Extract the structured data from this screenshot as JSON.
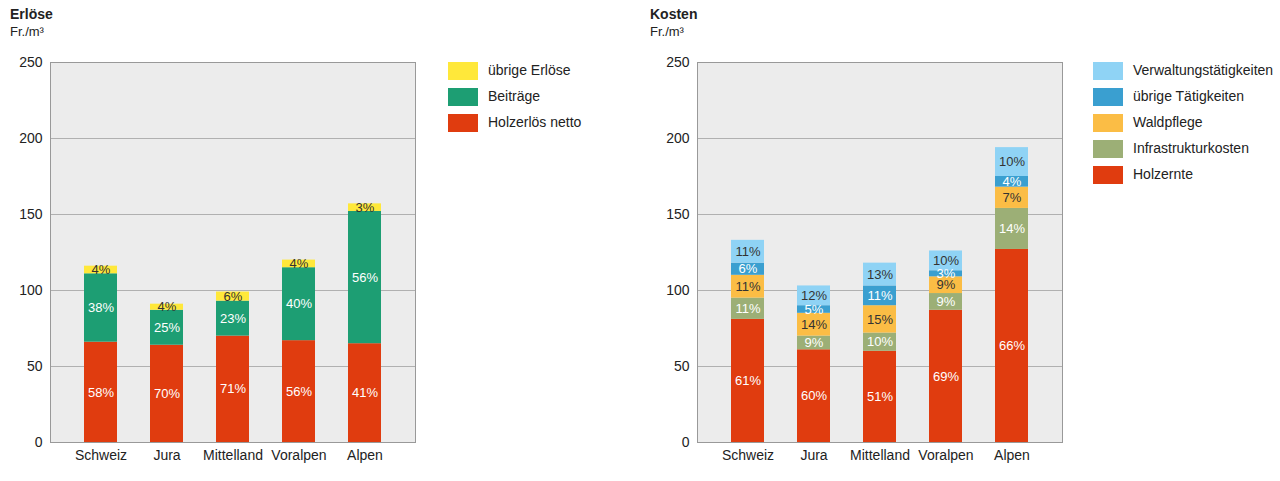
{
  "chart_data": [
    {
      "type": "bar",
      "stacked": true,
      "title": "Erlöse",
      "ylabel": "Fr./m³",
      "categories": [
        "Schweiz",
        "Jura",
        "Mittelland",
        "Voralpen",
        "Alpen"
      ],
      "ylim": [
        0,
        250
      ],
      "yticks": [
        0,
        50,
        100,
        150,
        200,
        250
      ],
      "grid": true,
      "legend": "right",
      "series": [
        {
          "name": "Holzerlös netto",
          "color": "#e03c0f",
          "values": [
            66,
            64,
            70,
            67,
            65
          ],
          "shares": [
            {
              "value": 58,
              "label": "58%"
            },
            {
              "value": 70,
              "label": "70%"
            },
            {
              "value": 71,
              "label": "71%"
            },
            {
              "value": 56,
              "label": "56%"
            },
            {
              "value": 41,
              "label": "41%"
            }
          ]
        },
        {
          "name": "Beiträge",
          "color": "#1d9e73",
          "values": [
            45,
            23,
            23,
            48,
            87
          ],
          "shares": [
            {
              "value": 38,
              "label": "38%"
            },
            {
              "value": 25,
              "label": "25%"
            },
            {
              "value": 23,
              "label": "23%"
            },
            {
              "value": 40,
              "label": "40%"
            },
            {
              "value": 56,
              "label": "56%"
            }
          ]
        },
        {
          "name": "übrige Erlöse",
          "color": "#ffe83a",
          "values": [
            5,
            4,
            6,
            5,
            5
          ],
          "shares": [
            {
              "value": 4,
              "label": "4%"
            },
            {
              "value": 4,
              "label": "4%"
            },
            {
              "value": 6,
              "label": "6%"
            },
            {
              "value": 4,
              "label": "4%"
            },
            {
              "value": 3,
              "label": "3%"
            }
          ]
        }
      ]
    },
    {
      "type": "bar",
      "stacked": true,
      "title": "Kosten",
      "ylabel": "Fr./m³",
      "categories": [
        "Schweiz",
        "Jura",
        "Mittelland",
        "Voralpen",
        "Alpen"
      ],
      "ylim": [
        0,
        250
      ],
      "yticks": [
        0,
        50,
        100,
        150,
        200,
        250
      ],
      "grid": true,
      "legend": "right",
      "series": [
        {
          "name": "Holzernte",
          "color": "#e03c0f",
          "values": [
            81,
            61,
            60,
            87,
            127
          ],
          "shares": [
            {
              "value": 61,
              "label": "61%"
            },
            {
              "value": 60,
              "label": "60%"
            },
            {
              "value": 51,
              "label": "51%"
            },
            {
              "value": 69,
              "label": "69%"
            },
            {
              "value": 66,
              "label": "66%"
            }
          ]
        },
        {
          "name": "Infrastrukturkosten",
          "color": "#9caf76",
          "values": [
            14,
            9,
            12,
            11,
            27
          ],
          "shares": [
            {
              "value": 11,
              "label": "11%"
            },
            {
              "value": 9,
              "label": "9%"
            },
            {
              "value": 10,
              "label": "10%"
            },
            {
              "value": 9,
              "label": "9%"
            },
            {
              "value": 14,
              "label": "14%"
            }
          ]
        },
        {
          "name": "Waldpflege",
          "color": "#fbbd45",
          "values": [
            15,
            15,
            18,
            11,
            14
          ],
          "shares": [
            {
              "value": 11,
              "label": "11%"
            },
            {
              "value": 14,
              "label": "14%"
            },
            {
              "value": 15,
              "label": "15%"
            },
            {
              "value": 9,
              "label": "9%"
            },
            {
              "value": 7,
              "label": "7%"
            }
          ]
        },
        {
          "name": "übrige Tätigkeiten",
          "color": "#3a9fd0",
          "values": [
            8,
            5,
            13,
            4,
            7
          ],
          "shares": [
            {
              "value": 6,
              "label": "6%"
            },
            {
              "value": 5,
              "label": "5%"
            },
            {
              "value": 11,
              "label": "11%"
            },
            {
              "value": 3,
              "label": "3%"
            },
            {
              "value": 4,
              "label": "4%"
            }
          ]
        },
        {
          "name": "Verwaltungstätigkeiten",
          "color": "#8fd3f5",
          "values": [
            15,
            13,
            15,
            13,
            19
          ],
          "shares": [
            {
              "value": 11,
              "label": "11%"
            },
            {
              "value": 12,
              "label": "12%"
            },
            {
              "value": 13,
              "label": "13%"
            },
            {
              "value": 10,
              "label": "10%"
            },
            {
              "value": 10,
              "label": "10%"
            }
          ]
        }
      ]
    }
  ]
}
